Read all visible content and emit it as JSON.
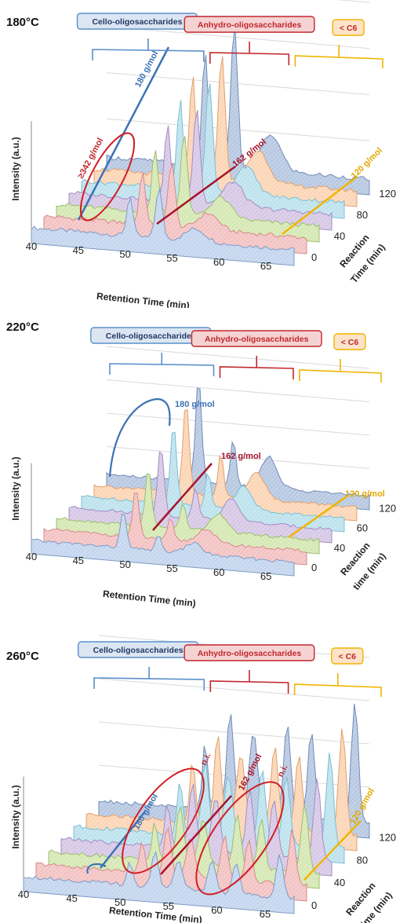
{
  "chart_data": [
    {
      "type": "area",
      "title": "180°C",
      "xlabel": "Retention Time (min)",
      "ylabel": "Intensity (a.u.)",
      "zlabel": [
        "Reaction",
        "Time (min)"
      ],
      "x_ticks": [
        "40",
        "45",
        "50",
        "55",
        "60",
        "65"
      ],
      "z_ticks": [
        "0",
        "40",
        "80",
        "120"
      ],
      "xlim": [
        40,
        68
      ],
      "ylim": [
        0,
        1
      ],
      "z_range": [
        0,
        120
      ],
      "groups": [
        {
          "label": "Cello-oligosaccharides",
          "color": "#5b8fc9",
          "fill": "#dce6f2",
          "range": [
            47,
            58
          ]
        },
        {
          "label": "Anhydro-oligosaccharides",
          "color": "#c0272d",
          "fill": "#f6d3d3",
          "range": [
            58,
            62
          ]
        },
        {
          "label": "< C6",
          "color": "#f0b400",
          "fill": "#fde3c8",
          "range": [
            62,
            68
          ]
        }
      ],
      "annotations": [
        {
          "label": "≥342 g/mol",
          "color": "#c0272d"
        },
        {
          "label": "180 g/mol",
          "color": "#3d72b4"
        },
        {
          "label": "162 g/mol",
          "color": "#c0272d"
        },
        {
          "label": "120 g/mol",
          "color": "#f0b400"
        }
      ],
      "peak_scale": 1.0,
      "peaks": [
        [
          50.5,
          0.8,
          0.45
        ],
        [
          53.6,
          1.0,
          0.5
        ],
        [
          57.5,
          0.25,
          1.5
        ]
      ]
    },
    {
      "type": "area",
      "title": "220°C",
      "xlabel": "Retention Time (min)",
      "ylabel": "Intensity (a.u.)",
      "zlabel": [
        "Reaction",
        "time (min)"
      ],
      "x_ticks": [
        "40",
        "45",
        "50",
        "55",
        "60",
        "65"
      ],
      "z_ticks": [
        "0",
        "40",
        "60",
        "120"
      ],
      "xlim": [
        40,
        68
      ],
      "ylim": [
        0,
        1
      ],
      "z_range": [
        0,
        120
      ],
      "groups": [
        {
          "label": "Cello-oligosaccharides",
          "color": "#5b8fc9",
          "fill": "#dce6f2",
          "range": [
            47,
            58
          ]
        },
        {
          "label": "Anhydro-oligosaccharides",
          "color": "#c0272d",
          "fill": "#f6d3d3",
          "range": [
            58,
            62
          ]
        },
        {
          "label": "< C6",
          "color": "#f0b400",
          "fill": "#fde3c8",
          "range": [
            62,
            68
          ]
        }
      ],
      "annotations": [
        {
          "label": "180 g/mol",
          "color": "#3d72b4"
        },
        {
          "label": "162 g/mol",
          "color": "#c0272d"
        },
        {
          "label": "120 g/mol",
          "color": "#f0b400"
        }
      ],
      "peak_scale": 1.0,
      "peaks": [
        [
          49.8,
          1.0,
          0.45
        ],
        [
          53.5,
          0.45,
          0.4
        ],
        [
          57.3,
          0.3,
          1.2
        ]
      ]
    },
    {
      "type": "area",
      "title": "260°C",
      "xlabel": "Retention Time (min)",
      "ylabel": "Intensity (a.u.)",
      "zlabel": [
        "Reaction",
        "Time (min)"
      ],
      "x_ticks": [
        "40",
        "45",
        "50",
        "55",
        "60",
        "65"
      ],
      "z_ticks": [
        "0",
        "40",
        "80",
        "120"
      ],
      "xlim": [
        40,
        68
      ],
      "ylim": [
        0,
        1
      ],
      "z_range": [
        0,
        120
      ],
      "groups": [
        {
          "label": "Cello-oligosaccharides",
          "color": "#5b8fc9",
          "fill": "#dce6f2",
          "range": [
            47,
            58
          ]
        },
        {
          "label": "Anhydro-oligosaccharides",
          "color": "#c0272d",
          "fill": "#f6d3d3",
          "range": [
            58,
            62
          ]
        },
        {
          "label": "< C6",
          "color": "#f0b400",
          "fill": "#fde3c8",
          "range": [
            62,
            68
          ]
        }
      ],
      "annotations": [
        {
          "label": "180 g/mol",
          "color": "#3d72b4"
        },
        {
          "label": "n.i.",
          "color": "#c0272d"
        },
        {
          "label": "162 g/mol",
          "color": "#c0272d"
        },
        {
          "label": "n.i.",
          "color": "#c0272d"
        },
        {
          "label": "120 g/mol",
          "color": "#f0b400"
        }
      ],
      "peak_scale": 1.0,
      "peaks": [
        [
          51.0,
          0.5,
          0.4
        ],
        [
          53.6,
          0.75,
          0.5
        ],
        [
          56.0,
          0.6,
          0.6
        ],
        [
          59.5,
          0.7,
          0.5
        ],
        [
          62.0,
          0.65,
          0.5
        ],
        [
          66.5,
          0.9,
          0.5
        ]
      ]
    }
  ]
}
